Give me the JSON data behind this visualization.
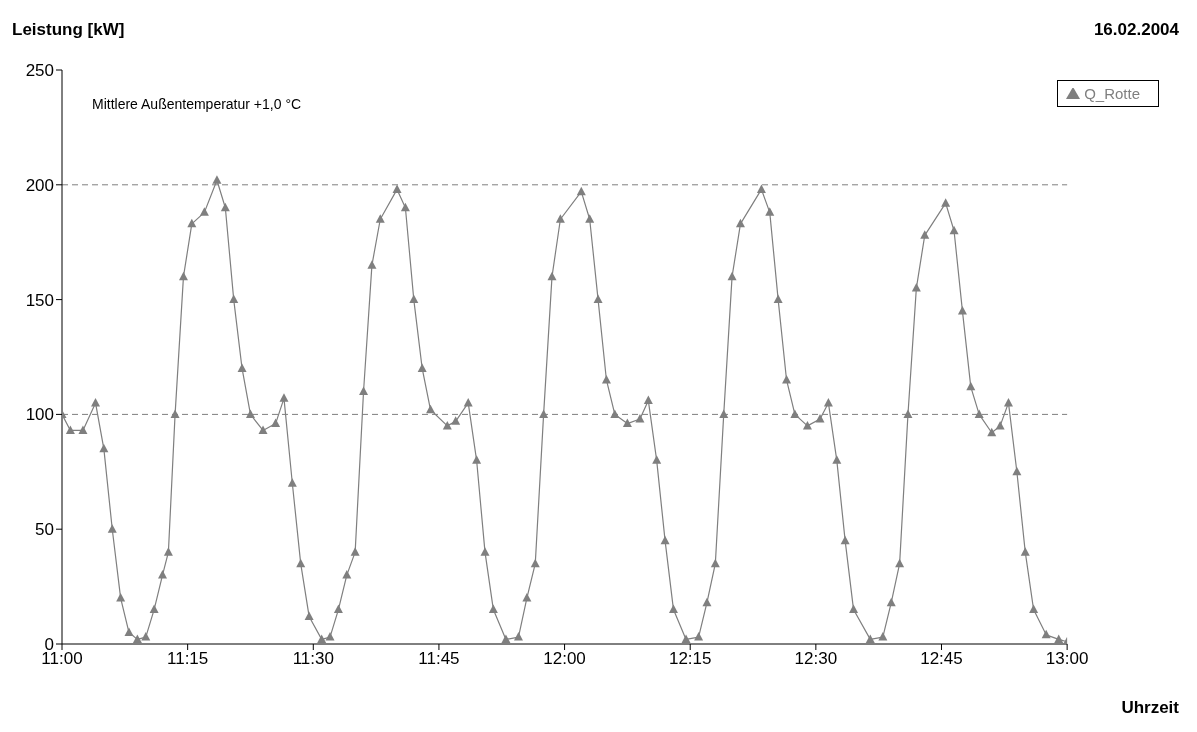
{
  "chart_data": {
    "type": "line",
    "ylabel": "Leistung [kW]",
    "subtitle": "16.02.2004",
    "xlabel": "Uhrzeit",
    "annotations": [
      "Mittlere Außentemperatur +1,0 °C"
    ],
    "x": [
      11.0,
      11.0167,
      11.0417,
      11.0667,
      11.0833,
      11.1,
      11.1167,
      11.1333,
      11.15,
      11.1667,
      11.1833,
      11.2,
      11.2117,
      11.225,
      11.2417,
      11.2583,
      11.2833,
      11.3083,
      11.325,
      11.3417,
      11.3583,
      11.375,
      11.4,
      11.425,
      11.4417,
      11.4583,
      11.475,
      11.4917,
      11.5167,
      11.5333,
      11.55,
      11.5667,
      11.5833,
      11.6,
      11.6167,
      11.6333,
      11.6667,
      11.6833,
      11.7,
      11.7167,
      11.7333,
      11.7667,
      11.7833,
      11.8083,
      11.825,
      11.8417,
      11.8583,
      11.8833,
      11.9083,
      11.925,
      11.9417,
      11.9583,
      11.975,
      11.9917,
      12.0333,
      12.05,
      12.0667,
      12.0833,
      12.1,
      12.125,
      12.15,
      12.1667,
      12.1833,
      12.2,
      12.2167,
      12.2417,
      12.2667,
      12.2833,
      12.3,
      12.3167,
      12.3333,
      12.35,
      12.3917,
      12.4083,
      12.425,
      12.4417,
      12.4583,
      12.4833,
      12.5083,
      12.525,
      12.5417,
      12.5583,
      12.575,
      12.6083,
      12.6333,
      12.65,
      12.6667,
      12.6833,
      12.7,
      12.7167,
      12.7583,
      12.775,
      12.7917,
      12.8083,
      12.825,
      12.85,
      12.8667,
      12.8833,
      12.9,
      12.9167,
      12.9333,
      12.9583,
      12.9833,
      13.0
    ],
    "series": [
      {
        "name": "Q_Rotte",
        "color": "#7f7f7f",
        "values": [
          100,
          93,
          93,
          105,
          85,
          50,
          20,
          5,
          2,
          3,
          15,
          30,
          40,
          100,
          160,
          183,
          188,
          202,
          190,
          150,
          120,
          100,
          93,
          96,
          107,
          70,
          35,
          12,
          2,
          3,
          15,
          30,
          40,
          110,
          165,
          185,
          198,
          190,
          150,
          120,
          102,
          95,
          97,
          105,
          80,
          40,
          15,
          2,
          3,
          20,
          35,
          100,
          160,
          185,
          197,
          185,
          150,
          115,
          100,
          96,
          98,
          106,
          80,
          45,
          15,
          2,
          3,
          18,
          35,
          100,
          160,
          183,
          198,
          188,
          150,
          115,
          100,
          95,
          98,
          105,
          80,
          45,
          15,
          2,
          3,
          18,
          35,
          100,
          155,
          178,
          192,
          180,
          145,
          112,
          100,
          92,
          95,
          105,
          75,
          40,
          15,
          4,
          2,
          1
        ]
      }
    ],
    "xlim": [
      11,
      13
    ],
    "xticks": [
      {
        "value": 11,
        "label": "11:00"
      },
      {
        "value": 11.25,
        "label": "11:15"
      },
      {
        "value": 11.5,
        "label": "11:30"
      },
      {
        "value": 11.75,
        "label": "11:45"
      },
      {
        "value": 12,
        "label": "12:00"
      },
      {
        "value": 12.25,
        "label": "12:15"
      },
      {
        "value": 12.5,
        "label": "12:30"
      },
      {
        "value": 12.75,
        "label": "12:45"
      },
      {
        "value": 13,
        "label": "13:00"
      }
    ],
    "ylim": [
      0,
      250
    ],
    "yticks": [
      0,
      50,
      100,
      150,
      200,
      250
    ],
    "ref_lines": [
      {
        "axis": "y",
        "value": 100,
        "line_style": "dashed",
        "color": "#7f7f7f"
      },
      {
        "axis": "y",
        "value": 200,
        "line_style": "dashed",
        "color": "#7f7f7f"
      }
    ],
    "legend": "top right",
    "marker": "triangle",
    "line_style": "solid"
  }
}
